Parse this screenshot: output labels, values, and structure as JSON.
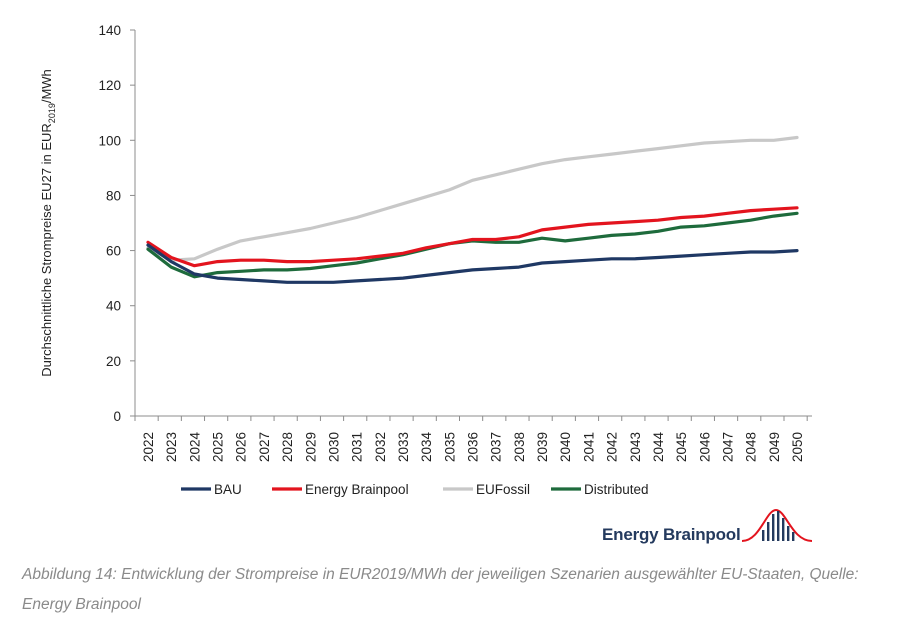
{
  "chart_data": {
    "type": "line",
    "title": "",
    "xlabel": "",
    "ylabel": {
      "main": "Durchschnittliche Strompreise EU27 in EUR",
      "sub": "2019",
      "unit": "/MWh"
    },
    "ylim": [
      0,
      140
    ],
    "yticks": [
      0,
      20,
      40,
      60,
      80,
      100,
      120,
      140
    ],
    "grid": false,
    "legend_position": "bottom",
    "x": [
      "2022",
      "2023",
      "2024",
      "2025",
      "2026",
      "2027",
      "2028",
      "2029",
      "2030",
      "2031",
      "2032",
      "2033",
      "2034",
      "2035",
      "2036",
      "2037",
      "2038",
      "2039",
      "2040",
      "2041",
      "2042",
      "2043",
      "2044",
      "2045",
      "2046",
      "2047",
      "2048",
      "2049",
      "2050"
    ],
    "series": [
      {
        "name": "BAU",
        "color": "#1f3864",
        "values": [
          62,
          56,
          51.5,
          50,
          49.5,
          49,
          48.5,
          48.5,
          48.5,
          49,
          49.5,
          50,
          51,
          52,
          53,
          53.5,
          54,
          55.5,
          56,
          56.5,
          57,
          57,
          57.5,
          58,
          58.5,
          59,
          59.5,
          59.5,
          60
        ]
      },
      {
        "name": "Energy Brainpool",
        "color": "#e3141e",
        "values": [
          63,
          57.5,
          54.5,
          56,
          56.5,
          56.5,
          56,
          56,
          56.5,
          57,
          58,
          59,
          61,
          62.5,
          64,
          64,
          65,
          67.5,
          68.5,
          69.5,
          70,
          70.5,
          71,
          72,
          72.5,
          73.5,
          74.5,
          75,
          75.5
        ]
      },
      {
        "name": "EUFossil",
        "color": "#c8c8c8",
        "values": [
          61,
          56.5,
          57,
          60.5,
          63.5,
          65,
          66.5,
          68,
          70,
          72,
          74.5,
          77,
          79.5,
          82,
          85.5,
          87.5,
          89.5,
          91.5,
          93,
          94,
          95,
          96,
          97,
          98,
          99,
          99.5,
          100,
          100,
          101
        ]
      },
      {
        "name": "Distributed",
        "color": "#1e6b3c",
        "values": [
          60.5,
          54,
          50.5,
          52,
          52.5,
          53,
          53,
          53.5,
          54.5,
          55.5,
          57,
          58.5,
          60.5,
          62.5,
          63.5,
          63,
          63,
          64.5,
          63.5,
          64.5,
          65.5,
          66,
          67,
          68.5,
          69,
          70,
          71,
          72.5,
          73.5
        ]
      }
    ]
  },
  "logo": {
    "text": "Energy Brainpool",
    "colors": {
      "text": "#243a5e",
      "mark_red": "#e3141e",
      "mark_navy": "#243a5e"
    }
  },
  "caption": "Abbildung 14: Entwicklung der Strompreise in EUR2019/MWh der jeweiligen Szenarien ausgewählter EU-Staaten, Quelle: Energy Brainpool"
}
